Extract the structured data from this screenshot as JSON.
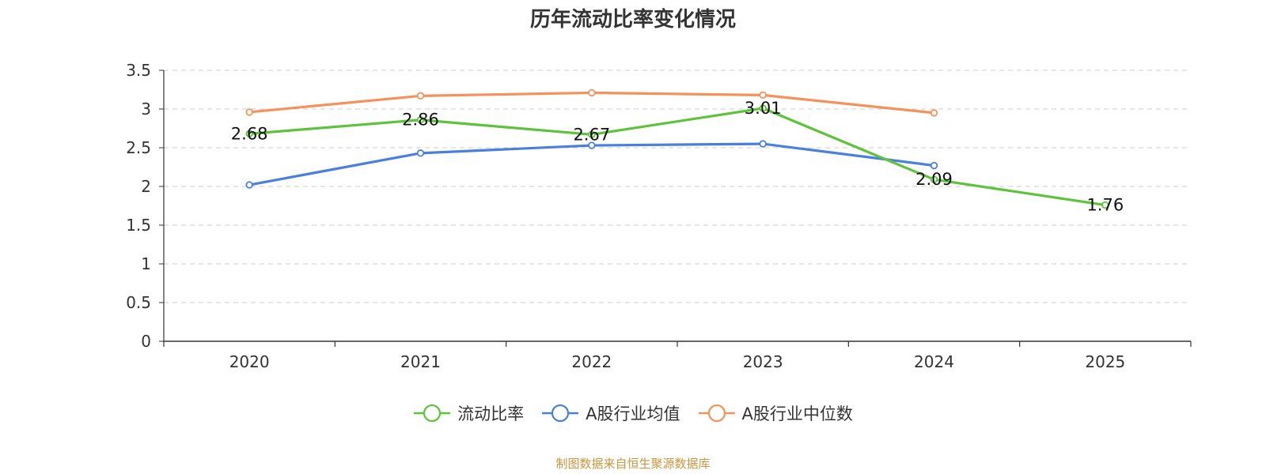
{
  "chart_data": {
    "type": "line",
    "title": "历年流动比率变化情况",
    "categories": [
      "2020",
      "2021",
      "2022",
      "2023",
      "2024",
      "2025"
    ],
    "ylim": [
      0,
      3.5
    ],
    "yticks": [
      "0",
      "0.5",
      "1",
      "1.5",
      "2",
      "2.5",
      "3",
      "3.5"
    ],
    "grid": true,
    "legend_position": "bottom",
    "series": [
      {
        "name": "流动比率",
        "color": "#5cc33a",
        "values": [
          2.68,
          2.86,
          2.67,
          3.01,
          2.09,
          1.76
        ],
        "labels": [
          "2.68",
          "2.86",
          "2.67",
          "3.01",
          "2.09",
          "1.76"
        ]
      },
      {
        "name": "A股行业均值",
        "color": "#4a7fdc",
        "values": [
          2.02,
          2.43,
          2.53,
          2.55,
          2.27,
          null
        ]
      },
      {
        "name": "A股行业中位数",
        "color": "#f4925c",
        "values": [
          2.96,
          3.17,
          3.21,
          3.18,
          2.95,
          null
        ]
      }
    ]
  },
  "source": "制图数据来自恒生聚源数据库"
}
